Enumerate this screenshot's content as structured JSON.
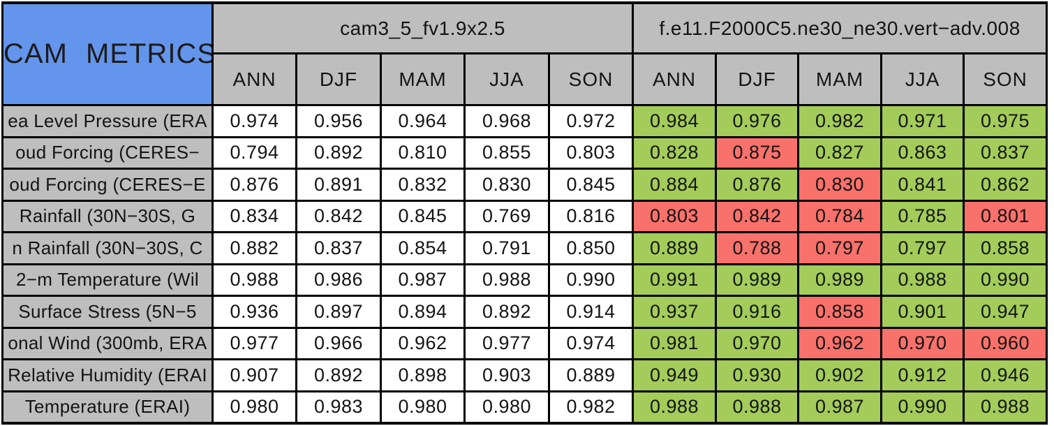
{
  "title": "CAM METRICS",
  "colors": {
    "blue": "#6495ED",
    "gray": "#BEBEBE",
    "green": "#A3CC5A",
    "red": "#F9716B",
    "border": "#000000",
    "plain_cell": "#FFFFFF"
  },
  "chart_data": {
    "type": "table",
    "title": "CAM METRICS",
    "column_groups": [
      {
        "label": "cam3_5_fv1.9x2.5",
        "columns": [
          "ANN",
          "DJF",
          "MAM",
          "JJA",
          "SON"
        ]
      },
      {
        "label": "f.e11.F2000C5.ne30_ne30.vert−adv.008",
        "columns": [
          "ANN",
          "DJF",
          "MAM",
          "JJA",
          "SON"
        ]
      }
    ],
    "highlight_colors_meaning": "cell background highlight in second group: green or red",
    "rows": [
      {
        "label": "ea Level Pressure (ERA",
        "values_1": [
          "0.974",
          "0.956",
          "0.964",
          "0.968",
          "0.972"
        ],
        "values_2": [
          "0.984",
          "0.976",
          "0.982",
          "0.971",
          "0.975"
        ],
        "colors_2": [
          "green",
          "green",
          "green",
          "green",
          "green"
        ]
      },
      {
        "label": "oud Forcing (CERES−",
        "values_1": [
          "0.794",
          "0.892",
          "0.810",
          "0.855",
          "0.803"
        ],
        "values_2": [
          "0.828",
          "0.875",
          "0.827",
          "0.863",
          "0.837"
        ],
        "colors_2": [
          "green",
          "red",
          "green",
          "green",
          "green"
        ]
      },
      {
        "label": "oud Forcing (CERES−E",
        "values_1": [
          "0.876",
          "0.891",
          "0.832",
          "0.830",
          "0.845"
        ],
        "values_2": [
          "0.884",
          "0.876",
          "0.830",
          "0.841",
          "0.862"
        ],
        "colors_2": [
          "green",
          "green",
          "red",
          "green",
          "green"
        ]
      },
      {
        "label": "Rainfall (30N−30S, G",
        "values_1": [
          "0.834",
          "0.842",
          "0.845",
          "0.769",
          "0.816"
        ],
        "values_2": [
          "0.803",
          "0.842",
          "0.784",
          "0.785",
          "0.801"
        ],
        "colors_2": [
          "red",
          "red",
          "red",
          "green",
          "red"
        ]
      },
      {
        "label": "n Rainfall (30N−30S, C",
        "values_1": [
          "0.882",
          "0.837",
          "0.854",
          "0.791",
          "0.850"
        ],
        "values_2": [
          "0.889",
          "0.788",
          "0.797",
          "0.797",
          "0.858"
        ],
        "colors_2": [
          "green",
          "red",
          "red",
          "green",
          "green"
        ]
      },
      {
        "label": "2−m Temperature (Wil",
        "values_1": [
          "0.988",
          "0.986",
          "0.987",
          "0.988",
          "0.990"
        ],
        "values_2": [
          "0.991",
          "0.989",
          "0.989",
          "0.988",
          "0.990"
        ],
        "colors_2": [
          "green",
          "green",
          "green",
          "green",
          "green"
        ]
      },
      {
        "label": "Surface Stress (5N−5",
        "values_1": [
          "0.936",
          "0.897",
          "0.894",
          "0.892",
          "0.914"
        ],
        "values_2": [
          "0.937",
          "0.916",
          "0.858",
          "0.901",
          "0.947"
        ],
        "colors_2": [
          "green",
          "green",
          "red",
          "green",
          "green"
        ]
      },
      {
        "label": "onal Wind (300mb, ERA",
        "values_1": [
          "0.977",
          "0.966",
          "0.962",
          "0.977",
          "0.974"
        ],
        "values_2": [
          "0.981",
          "0.970",
          "0.962",
          "0.970",
          "0.960"
        ],
        "colors_2": [
          "green",
          "green",
          "red",
          "red",
          "red"
        ]
      },
      {
        "label": "Relative Humidity (ERAI",
        "values_1": [
          "0.907",
          "0.892",
          "0.898",
          "0.903",
          "0.889"
        ],
        "values_2": [
          "0.949",
          "0.930",
          "0.902",
          "0.912",
          "0.946"
        ],
        "colors_2": [
          "green",
          "green",
          "green",
          "green",
          "green"
        ]
      },
      {
        "label": "Temperature (ERAI)",
        "values_1": [
          "0.980",
          "0.983",
          "0.980",
          "0.980",
          "0.982"
        ],
        "values_2": [
          "0.988",
          "0.988",
          "0.987",
          "0.990",
          "0.988"
        ],
        "colors_2": [
          "green",
          "green",
          "green",
          "green",
          "green"
        ]
      }
    ]
  }
}
